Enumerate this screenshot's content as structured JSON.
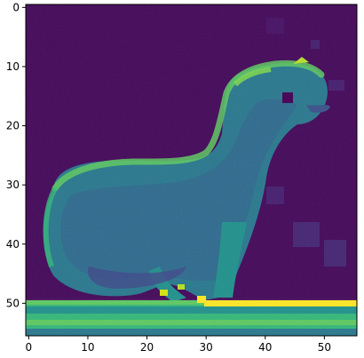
{
  "chart_data": {
    "type": "heatmap",
    "title": "",
    "xlabel": "",
    "ylabel": "",
    "colormap": "viridis",
    "grid": false,
    "image_shape": {
      "rows": 56,
      "cols": 56
    },
    "xlim": [
      -0.5,
      55.5
    ],
    "ylim": [
      55.5,
      -0.5
    ],
    "x_ticks": [
      0,
      10,
      20,
      30,
      40,
      50
    ],
    "y_ticks": [
      0,
      10,
      20,
      30,
      40,
      50
    ],
    "subject": "grayscale image of a ferret/weasel standing on a platform",
    "notable_features": [
      "background values low (dark purple)",
      "animal body mid values (teal/green)",
      "edges/highlights higher values (green/yellow)",
      "bright yellow horizontal strip near row 50 (platform edge)",
      "small bright specks near feet around x 22-30, y 49-51"
    ]
  }
}
